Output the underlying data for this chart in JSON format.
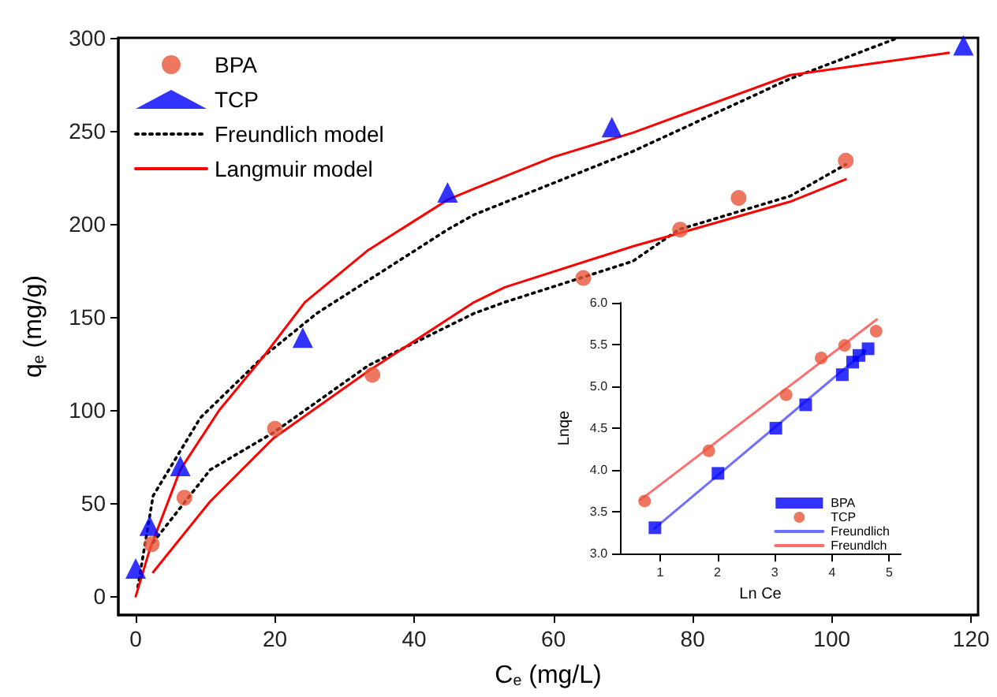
{
  "chart_data": [
    {
      "type": "scatter",
      "xlabel": "C$_{e}$ (mg/L)",
      "ylabel": "q$_{e}$ (mg/g)",
      "xlim": [
        -2.5,
        121
      ],
      "ylim": [
        -10,
        300
      ],
      "xticks": [
        0,
        20,
        40,
        60,
        80,
        100,
        120
      ],
      "yticks": [
        0,
        50,
        100,
        150,
        200,
        250,
        300
      ],
      "grid": false,
      "legend": "top left",
      "series": [
        {
          "name": "BPA",
          "type": "scatter",
          "marker": "circle",
          "color": "#e8553a",
          "x": [
            2.3,
            7,
            20,
            34,
            64.3,
            78.2,
            86.6,
            102
          ],
          "values": [
            28,
            53,
            90,
            119,
            171,
            197,
            214,
            234
          ]
        },
        {
          "name": "TCP",
          "type": "scatter",
          "marker": "triangle",
          "color": "#0000ff",
          "x": [
            0,
            2,
            6.4,
            24,
            44.8,
            68.4,
            118.9
          ],
          "values": [
            15,
            38,
            70,
            139,
            217,
            252,
            296
          ]
        },
        {
          "name": "Freundlich model",
          "type": "line",
          "line_style": "dotted",
          "color": "#000000",
          "x": [
            0.3,
            2.5,
            9.3,
            18.4,
            26,
            44.8,
            48.6,
            71.4,
            94,
            109.5
          ],
          "values": [
            5,
            54,
            96,
            129,
            152,
            197,
            205,
            239,
            278,
            300
          ]
        },
        {
          "name": "Langmuir model",
          "type": "line",
          "line_style": "solid",
          "color": "#ff0000",
          "x": [
            0,
            2,
            6.4,
            12,
            18.4,
            24.3,
            33.4,
            44.8,
            48.6,
            60,
            71.4,
            94,
            116.8
          ],
          "values": [
            0,
            25,
            68,
            100,
            129,
            158,
            186,
            213,
            219,
            236,
            249,
            280,
            292
          ]
        },
        {
          "type": "line",
          "line_style": "dotted",
          "color": "#000000",
          "x": [
            2.5,
            10.7,
            19.8,
            33.4,
            48.6,
            53,
            71.4,
            78,
            94,
            102
          ],
          "values": [
            29,
            68,
            88,
            124,
            152,
            158,
            180,
            197,
            215,
            232
          ]
        },
        {
          "type": "line",
          "line_style": "solid",
          "color": "#ff0000",
          "x": [
            2.5,
            10.7,
            19.8,
            33.4,
            48.6,
            53,
            71.4,
            94,
            102
          ],
          "values": [
            13,
            51,
            85,
            121,
            158,
            166,
            188,
            212,
            224
          ]
        }
      ]
    },
    {
      "type": "scatter",
      "xlabel": "Ln Ce",
      "ylabel": "Lnqe",
      "xlim": [
        0.3,
        5.2
      ],
      "ylim": [
        3,
        6
      ],
      "xticks": [
        1,
        2,
        3,
        4,
        5
      ],
      "yticks": [
        {
          "value": 3,
          "label": "3.0"
        },
        {
          "value": 3.5,
          "label": "3.5"
        },
        {
          "value": 4,
          "label": "4.0"
        },
        {
          "value": 4.5,
          "label": "4.5"
        },
        {
          "value": 5,
          "label": "5.0"
        },
        {
          "value": 5.5,
          "label": "5.5"
        },
        {
          "value": 6,
          "label": "6.0"
        }
      ],
      "grid": false,
      "legend": "bottom right",
      "series": [
        {
          "name": "BPA",
          "type": "scatter",
          "marker": "square",
          "color": "#0000ff",
          "x": [
            0.91,
            2.01,
            3.02,
            3.54,
            4.18,
            4.36,
            4.47,
            4.63
          ],
          "values": [
            3.31,
            3.96,
            4.5,
            4.78,
            5.14,
            5.29,
            5.37,
            5.45
          ]
        },
        {
          "name": "TCP",
          "type": "scatter",
          "marker": "circle",
          "color": "#e8553a",
          "x": [
            0.73,
            1.85,
            3.2,
            3.81,
            4.22,
            4.77
          ],
          "values": [
            3.63,
            4.23,
            4.9,
            5.34,
            5.49,
            5.66
          ]
        },
        {
          "name": "Freundlich",
          "type": "line",
          "line_style": "solid",
          "color": "#6f6fff",
          "x": [
            0.9,
            4.58
          ],
          "values": [
            3.3,
            5.42
          ]
        },
        {
          "name": "Freundlch",
          "type": "line",
          "line_style": "solid",
          "color": "#ff6f6f",
          "x": [
            0.65,
            4.78
          ],
          "values": [
            3.64,
            5.8
          ]
        }
      ]
    }
  ]
}
